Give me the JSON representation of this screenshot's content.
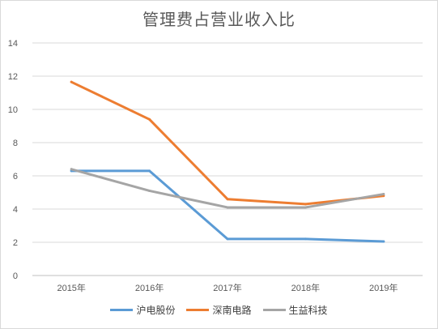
{
  "chart_data": {
    "type": "line",
    "title": "管理费占营业收入比",
    "categories": [
      "2015年",
      "2016年",
      "2017年",
      "2018年",
      "2019年"
    ],
    "ylim": [
      0,
      14
    ],
    "yticks": [
      "0",
      "2",
      "4",
      "6",
      "8",
      "10",
      "12",
      "14"
    ],
    "grid": true,
    "legend_position": "bottom",
    "series": [
      {
        "name": "沪电股份",
        "color": "#5b9bd5",
        "values": [
          6.3,
          6.3,
          2.2,
          2.2,
          2.05
        ]
      },
      {
        "name": "深南电路",
        "color": "#ed7d31",
        "values": [
          11.65,
          9.4,
          4.6,
          4.3,
          4.8
        ]
      },
      {
        "name": "生益科技",
        "color": "#a5a5a5",
        "values": [
          6.4,
          5.1,
          4.1,
          4.1,
          4.9
        ]
      }
    ]
  }
}
